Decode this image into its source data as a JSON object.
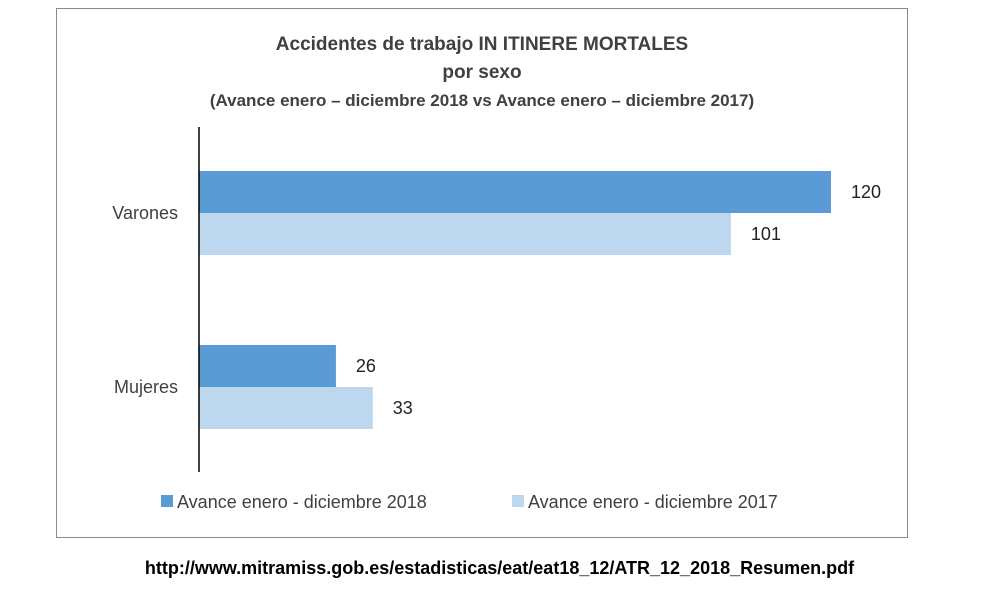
{
  "chart_data": {
    "type": "bar",
    "orientation": "horizontal",
    "title": "Accidentes de trabajo IN ITINERE MORTALES",
    "title_line2": "por sexo",
    "subtitle": "(Avance enero – diciembre 2018 vs Avance enero – diciembre 2017)",
    "categories": [
      "Varones",
      "Mujeres"
    ],
    "series": [
      {
        "name": "Avance enero - diciembre 2018",
        "values": [
          120,
          26
        ],
        "color": "#5b9bd5"
      },
      {
        "name": "Avance enero - diciembre 2017",
        "values": [
          101,
          33
        ],
        "color": "#bdd7ee"
      }
    ],
    "xlim": [
      0,
      120
    ],
    "grid": false,
    "legend_position": "bottom",
    "data_labels": true
  },
  "source": {
    "url": "http://www.mitramiss.gob.es/estadisticas/eat/eat18_12/ATR_12_2018_Resumen.pdf"
  }
}
